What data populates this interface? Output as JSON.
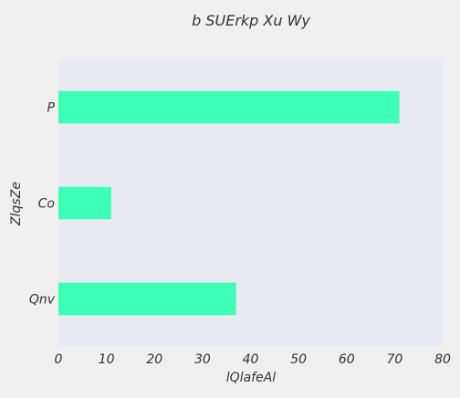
{
  "chart_data": {
    "type": "bar",
    "orientation": "horizontal",
    "title": "b SUErkp Xu Wy",
    "xlabel": "lQlafeAl",
    "ylabel": "ZlqsZe",
    "categories": [
      "P",
      "Co",
      "Qnv"
    ],
    "values": [
      71,
      11,
      37
    ],
    "xlim": [
      0,
      80
    ],
    "xticks": [
      "0",
      "10",
      "20",
      "30",
      "40",
      "50",
      "60",
      "70",
      "80"
    ],
    "grid": false,
    "legend": "none",
    "colors": {
      "bar": "#3dffb8",
      "plot_background": "#eaeaf2",
      "figure_background": "#f0f0f0"
    }
  }
}
